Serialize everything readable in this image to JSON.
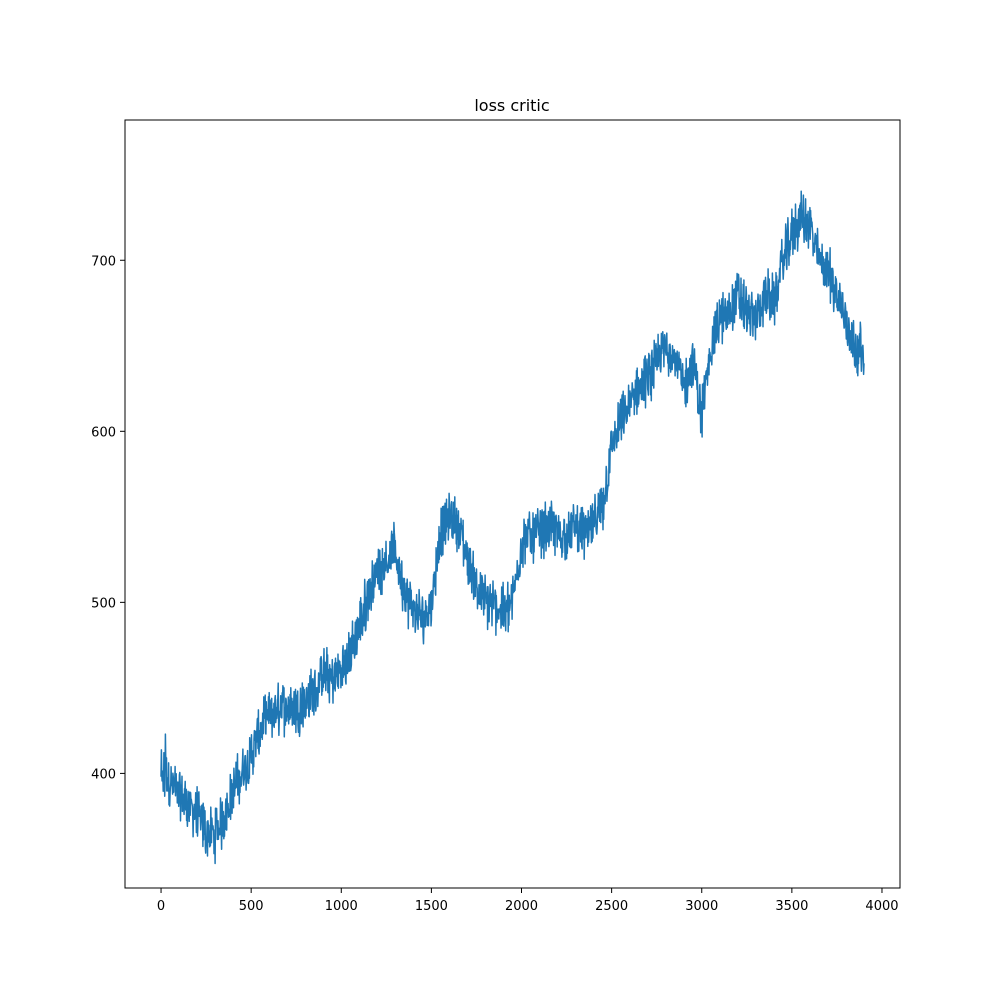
{
  "chart_data": {
    "type": "line",
    "title": "loss critic",
    "xlabel": "",
    "ylabel": "",
    "xlim": [
      -200,
      4100
    ],
    "ylim": [
      333,
      782
    ],
    "xticks": [
      0,
      500,
      1000,
      1500,
      2000,
      2500,
      3000,
      3500,
      4000
    ],
    "yticks": [
      400,
      500,
      600,
      700
    ],
    "xtick_labels": [
      "0",
      "500",
      "1000",
      "1500",
      "2000",
      "2500",
      "3000",
      "3500",
      "4000"
    ],
    "ytick_labels": [
      "400",
      "500",
      "600",
      "700"
    ],
    "grid": false,
    "legend": "none",
    "line_color": "#1f77b4",
    "noise_amplitude": 12,
    "series": [
      {
        "x": [
          0,
          20,
          50,
          100,
          150,
          200,
          250,
          300,
          350,
          400,
          450,
          500,
          550,
          600,
          650,
          700,
          750,
          800,
          850,
          900,
          950,
          1000,
          1050,
          1100,
          1150,
          1200,
          1250,
          1300,
          1350,
          1400,
          1450,
          1500,
          1550,
          1600,
          1650,
          1700,
          1750,
          1800,
          1850,
          1900,
          1950,
          2000,
          2050,
          2100,
          2150,
          2200,
          2250,
          2300,
          2350,
          2400,
          2450,
          2500,
          2550,
          2600,
          2650,
          2700,
          2750,
          2800,
          2850,
          2900,
          2950,
          3000,
          3050,
          3100,
          3150,
          3200,
          3250,
          3300,
          3350,
          3400,
          3450,
          3500,
          3550,
          3600,
          3650,
          3700,
          3750,
          3800,
          3850,
          3900
        ],
        "values": [
          390,
          400,
          395,
          388,
          382,
          376,
          366,
          364,
          375,
          390,
          400,
          410,
          425,
          433,
          437,
          440,
          438,
          442,
          448,
          458,
          455,
          460,
          470,
          485,
          505,
          518,
          525,
          530,
          505,
          495,
          490,
          500,
          540,
          550,
          545,
          525,
          510,
          500,
          498,
          495,
          500,
          535,
          540,
          540,
          545,
          540,
          538,
          545,
          540,
          545,
          555,
          590,
          605,
          615,
          625,
          630,
          640,
          650,
          645,
          625,
          640,
          610,
          650,
          665,
          670,
          680,
          670,
          665,
          680,
          675,
          700,
          715,
          725,
          720,
          700,
          695,
          680,
          665,
          650,
          645
        ]
      }
    ]
  }
}
